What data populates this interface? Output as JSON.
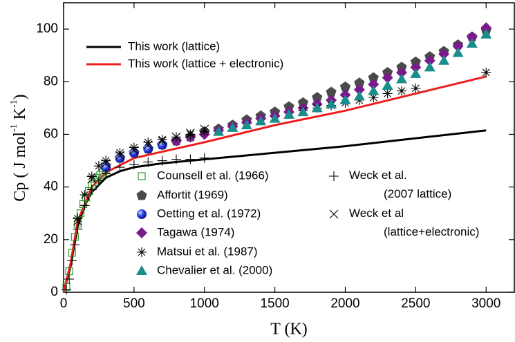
{
  "chart_data": {
    "type": "scatter",
    "x_label": "T (K)",
    "y_label": [
      "Cp  ( J mol",
      "-1",
      " K",
      "-1",
      ")"
    ],
    "xlim": [
      0,
      3200
    ],
    "xticks": [
      0,
      500,
      1000,
      1500,
      2000,
      2500,
      3000
    ],
    "ylim": [
      0,
      110
    ],
    "yticks": [
      0,
      20,
      40,
      60,
      80,
      100
    ],
    "series": [
      {
        "name": "This work (lattice)",
        "color": "#000000",
        "kind": "line",
        "x": [
          0,
          50,
          100,
          150,
          200,
          300,
          400,
          500,
          700,
          1000,
          1500,
          2000,
          2500,
          3000
        ],
        "values": [
          0,
          10,
          25,
          33,
          38,
          43.5,
          46,
          47.5,
          49,
          50.5,
          53,
          55.5,
          58.5,
          61.5
        ]
      },
      {
        "name": "This work (lattice + electronic)",
        "color": "#ee1c1c",
        "kind": "line",
        "x": [
          0,
          50,
          100,
          200,
          300,
          500,
          1000,
          1500,
          2000,
          2500,
          3000
        ],
        "values": [
          0,
          11,
          27,
          40,
          45.5,
          51,
          57,
          63.5,
          69,
          75.5,
          82
        ]
      },
      {
        "name": "Counsell et al. (1966)",
        "color": "#2e9a2e",
        "marker": "square",
        "x": [
          20,
          40,
          60,
          80,
          100,
          120,
          140,
          160,
          180,
          200,
          220,
          240,
          260,
          280,
          300
        ],
        "values": [
          2,
          8,
          15,
          21,
          26,
          30,
          33.5,
          36,
          38.5,
          40.5,
          42,
          43.5,
          44.5,
          45.5,
          46.5
        ]
      },
      {
        "name": "Affortit (1969)",
        "color": "#4a4a4a",
        "marker": "pentagon",
        "x": [
          300,
          400,
          500,
          600,
          700,
          800,
          900,
          1000,
          1100,
          1200,
          1300,
          1400,
          1500,
          1600,
          1700,
          1800,
          1900,
          2000,
          2100,
          2200,
          2300,
          2400,
          2500,
          2600,
          2700,
          2800,
          2900,
          3000
        ],
        "values": [
          48,
          51,
          53,
          54.5,
          56,
          57.5,
          59,
          61,
          62,
          63.5,
          65.5,
          67,
          68.5,
          70.5,
          72,
          74,
          76,
          78,
          79.5,
          81.5,
          83.5,
          85.5,
          87.5,
          89.5,
          91.5,
          94,
          97,
          99.5
        ]
      },
      {
        "name": "Oetting et al. (1972)",
        "color": "#1a2ee0",
        "marker": "sphere",
        "x": [
          300,
          400,
          500,
          600,
          700
        ],
        "values": [
          47.5,
          51,
          53,
          54.5,
          56
        ]
      },
      {
        "name": "Tagawa (1974)",
        "color": "#7b1a8c",
        "marker": "diamond",
        "x": [
          800,
          900,
          1000,
          1100,
          1200,
          1300,
          1400,
          1500,
          1600,
          1700,
          1800,
          1900,
          2000,
          2100,
          2200,
          2300,
          2400,
          2500,
          2600,
          2700,
          2800,
          2900,
          3000
        ],
        "values": [
          57.5,
          59,
          60,
          61.5,
          63,
          64.5,
          66,
          67,
          68.5,
          70,
          71.5,
          73,
          75,
          77,
          79,
          81.5,
          83.5,
          85.5,
          88,
          90.5,
          93.5,
          97,
          100.5
        ]
      },
      {
        "name": "Matsui et al. (1987)",
        "color": "#000000",
        "marker": "star",
        "x": [
          100,
          150,
          200,
          250,
          300,
          400,
          500,
          600,
          700,
          800,
          900,
          1000,
          1700,
          1800,
          1900,
          2000,
          2100,
          2200,
          2300,
          2400,
          2500,
          3000
        ],
        "values": [
          28,
          37,
          44,
          48,
          50,
          53,
          55,
          57,
          58,
          59,
          60,
          61,
          69,
          70,
          71,
          72,
          73,
          74,
          75.5,
          76.5,
          77.5,
          83.5
        ]
      },
      {
        "name": "Chevalier et al. (2000)",
        "color": "#1a8c8c",
        "marker": "triangle",
        "x": [
          1100,
          1200,
          1300,
          1400,
          1500,
          1600,
          1700,
          1800,
          1900,
          2000,
          2100,
          2200,
          2300,
          2400,
          2500,
          2600,
          2700,
          2800,
          2900,
          3000
        ],
        "values": [
          61,
          62.5,
          63.5,
          65,
          66,
          67.5,
          68.5,
          70,
          71.5,
          73,
          74.5,
          76.5,
          78.5,
          81,
          83,
          85.5,
          88,
          91,
          94.5,
          98
        ]
      },
      {
        "name": "Weck et al.\n(2007 lattice)",
        "color": "#000000",
        "marker": "plus",
        "x": [
          20,
          40,
          60,
          80,
          100,
          150,
          200,
          250,
          300,
          400,
          500,
          600,
          700,
          800,
          900,
          1000
        ],
        "values": [
          1,
          5,
          12,
          18,
          24,
          33,
          39,
          42.5,
          45,
          47.5,
          48.5,
          49.5,
          50,
          50.5,
          50.5,
          51
        ]
      },
      {
        "name": "Weck et al\n(lattice+electronic)",
        "color": "#000000",
        "marker": "cross",
        "x": [
          100,
          200,
          300,
          400,
          500,
          600,
          700,
          800,
          900,
          1000
        ],
        "values": [
          27,
          43,
          49,
          52,
          54,
          56,
          57.5,
          59,
          60.5,
          62
        ]
      }
    ]
  }
}
